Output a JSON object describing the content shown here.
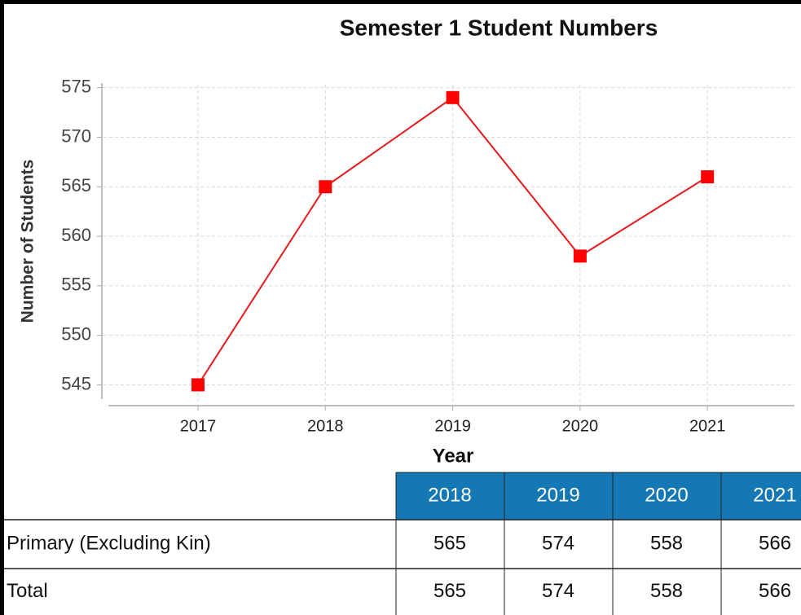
{
  "chart_data": {
    "type": "line",
    "title": "Semester 1 Student Numbers",
    "x_label": "Year",
    "y_label": "Number of Students",
    "categories": [
      "2017",
      "2018",
      "2019",
      "2020",
      "2021"
    ],
    "series": [
      {
        "name": "Number of Students",
        "color": "#e8191c",
        "values": [
          545,
          565,
          574,
          558,
          566
        ]
      }
    ],
    "ylim": [
      542.9,
      575.3
    ],
    "yticks": [
      545,
      550,
      555,
      560,
      565,
      570,
      575
    ],
    "grid": true
  },
  "table": {
    "columns": [
      "2018",
      "2019",
      "2020",
      "2021"
    ],
    "rows": [
      [
        "Primary (Excluding Kin)",
        565,
        574,
        558,
        566
      ],
      [
        "Total",
        565,
        574,
        558,
        566
      ]
    ]
  }
}
